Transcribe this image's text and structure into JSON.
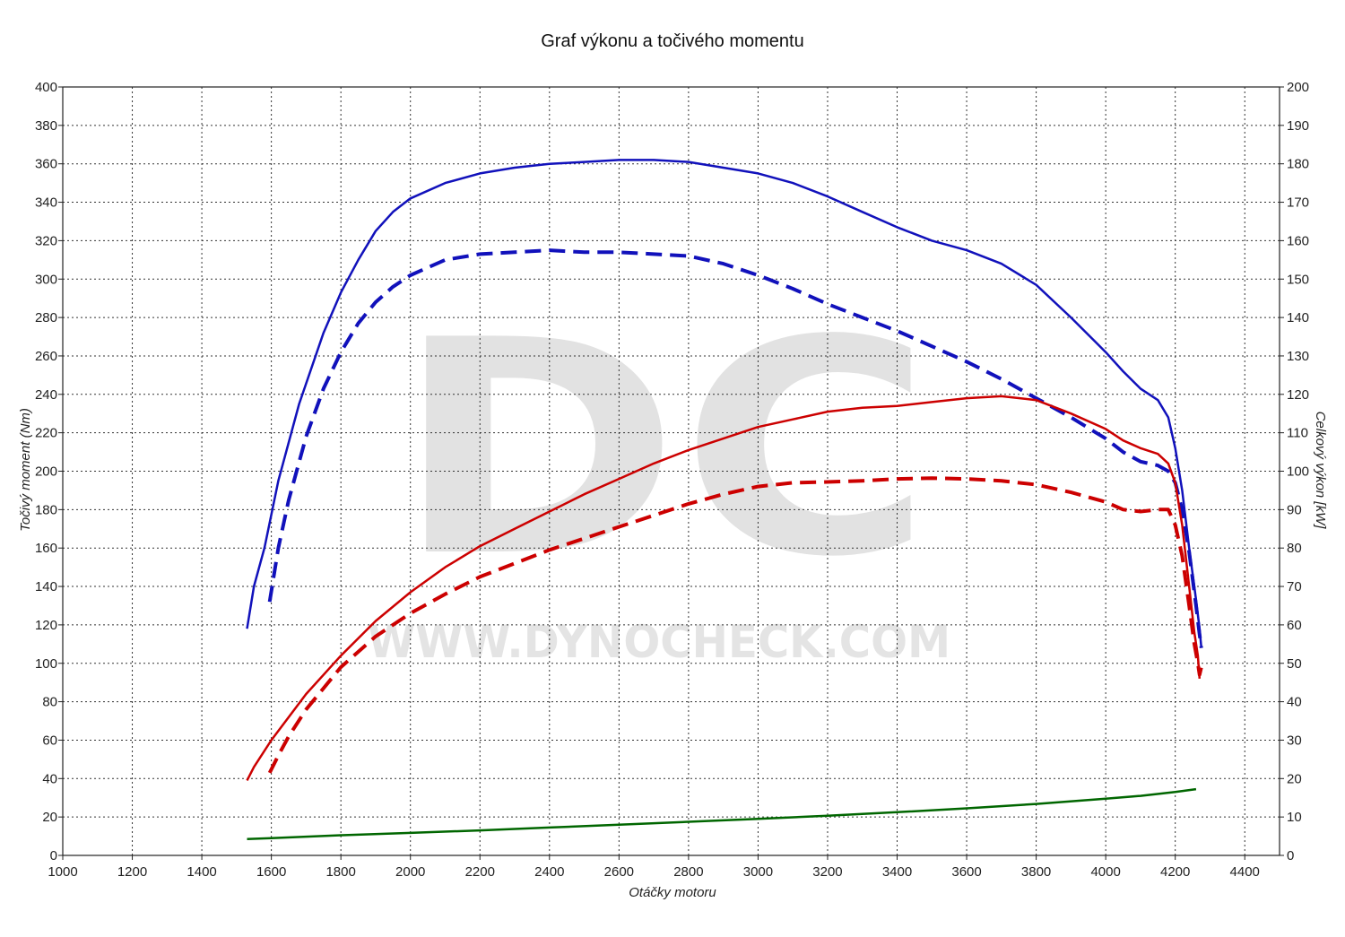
{
  "chart_data": {
    "type": "line",
    "title": "Graf výkonu a točivého momentu",
    "xlabel": "Otáčky motoru",
    "ylabel": "Točivý moment (Nm)",
    "ylabel_right": "Celkový výkon [kW]",
    "xlim": [
      1000,
      4500
    ],
    "ylim": [
      0,
      400
    ],
    "ylim_right": [
      0,
      200
    ],
    "x_ticks": [
      "1000",
      "1200",
      "1400",
      "1600",
      "1800",
      "2000",
      "2200",
      "2400",
      "2600",
      "2800",
      "3000",
      "3200",
      "3400",
      "3600",
      "3800",
      "4000",
      "4200",
      "4400"
    ],
    "y_ticks": [
      "0",
      "20",
      "40",
      "60",
      "80",
      "100",
      "120",
      "140",
      "160",
      "180",
      "200",
      "220",
      "240",
      "260",
      "280",
      "300",
      "320",
      "340",
      "360",
      "380",
      "400"
    ],
    "y_ticks_right": [
      "0",
      "10",
      "20",
      "30",
      "40",
      "50",
      "60",
      "70",
      "80",
      "90",
      "100",
      "110",
      "120",
      "130",
      "140",
      "150",
      "160",
      "170",
      "180",
      "190",
      "200"
    ],
    "grid": true,
    "watermark": {
      "letters": "DC",
      "url": "WWW.DYNOCHECK.COM"
    },
    "series": [
      {
        "axis": "left",
        "color": "#1111bb",
        "dash": "solid",
        "x": [
          1530,
          1550,
          1580,
          1620,
          1680,
          1750,
          1800,
          1850,
          1900,
          1950,
          2000,
          2100,
          2200,
          2300,
          2400,
          2500,
          2600,
          2700,
          2800,
          2900,
          3000,
          3100,
          3200,
          3300,
          3400,
          3500,
          3600,
          3700,
          3800,
          3900,
          4000,
          4050,
          4100,
          4150,
          4180,
          4200,
          4220,
          4240,
          4260,
          4270,
          4275
        ],
        "values": [
          118,
          140,
          160,
          195,
          235,
          272,
          293,
          310,
          325,
          335,
          342,
          350,
          355,
          358,
          360,
          361,
          362,
          362,
          361,
          358,
          355,
          350,
          343,
          335,
          327,
          320,
          315,
          308,
          297,
          280,
          262,
          252,
          243,
          237,
          228,
          212,
          190,
          160,
          133,
          118,
          108
        ]
      },
      {
        "axis": "left",
        "color": "#1111bb",
        "dash": "dashed",
        "x": [
          1595,
          1620,
          1650,
          1700,
          1750,
          1800,
          1850,
          1900,
          1950,
          2000,
          2100,
          2200,
          2300,
          2400,
          2500,
          2600,
          2700,
          2800,
          2900,
          3000,
          3100,
          3200,
          3300,
          3400,
          3500,
          3600,
          3700,
          3800,
          3900,
          4000,
          4050,
          4100,
          4150,
          4180,
          4200,
          4220,
          4240,
          4260,
          4270,
          4275
        ],
        "values": [
          132,
          160,
          185,
          218,
          243,
          262,
          277,
          288,
          296,
          302,
          310,
          313,
          314,
          315,
          314,
          314,
          313,
          312,
          308,
          302,
          295,
          287,
          280,
          273,
          265,
          257,
          248,
          238,
          228,
          217,
          210,
          205,
          203,
          200,
          194,
          180,
          158,
          130,
          115,
          108
        ]
      },
      {
        "axis": "right",
        "color": "#cc0000",
        "dash": "solid",
        "x": [
          1530,
          1550,
          1600,
          1700,
          1800,
          1900,
          2000,
          2100,
          2200,
          2300,
          2400,
          2500,
          2600,
          2700,
          2800,
          2900,
          3000,
          3100,
          3200,
          3300,
          3400,
          3500,
          3600,
          3700,
          3800,
          3900,
          4000,
          4050,
          4100,
          4150,
          4180,
          4200,
          4220,
          4240,
          4255,
          4265,
          4270
        ],
        "values": [
          19.5,
          23,
          30,
          42,
          52,
          61,
          68.5,
          75,
          80.5,
          85,
          89.5,
          94,
          98,
          102,
          105.5,
          108.5,
          111.5,
          113.5,
          115.5,
          116.5,
          117,
          118,
          119,
          119.5,
          118.5,
          115,
          111,
          108,
          106,
          104.5,
          102,
          97,
          86,
          70,
          58,
          52,
          46
        ]
      },
      {
        "axis": "right",
        "color": "#cc0000",
        "dash": "dashed",
        "x": [
          1595,
          1620,
          1650,
          1700,
          1800,
          1900,
          2000,
          2100,
          2200,
          2300,
          2400,
          2500,
          2600,
          2700,
          2800,
          2900,
          3000,
          3100,
          3200,
          3300,
          3400,
          3500,
          3600,
          3700,
          3800,
          3900,
          4000,
          4050,
          4100,
          4150,
          4180,
          4200,
          4220,
          4240,
          4255,
          4265,
          4270,
          4275
        ],
        "values": [
          21.5,
          26,
          31,
          38,
          49,
          57,
          63,
          68,
          72.5,
          76,
          79.5,
          82.5,
          85.5,
          88.5,
          91.5,
          94,
          96,
          97,
          97.2,
          97.5,
          98,
          98.2,
          98,
          97.5,
          96.5,
          94.5,
          92,
          90,
          89.5,
          90,
          90,
          86,
          78,
          65,
          55,
          50,
          47,
          49
        ]
      },
      {
        "axis": "left",
        "color": "#006600",
        "dash": "solid",
        "x": [
          1530,
          1600,
          1800,
          2000,
          2200,
          2400,
          2600,
          2800,
          3000,
          3200,
          3400,
          3600,
          3800,
          4000,
          4100,
          4200,
          4260
        ],
        "values": [
          8.5,
          9,
          10.5,
          11.7,
          13,
          14.5,
          16,
          17.5,
          19,
          20.7,
          22.5,
          24.5,
          26.8,
          29.5,
          31,
          33,
          34.5
        ]
      }
    ]
  }
}
